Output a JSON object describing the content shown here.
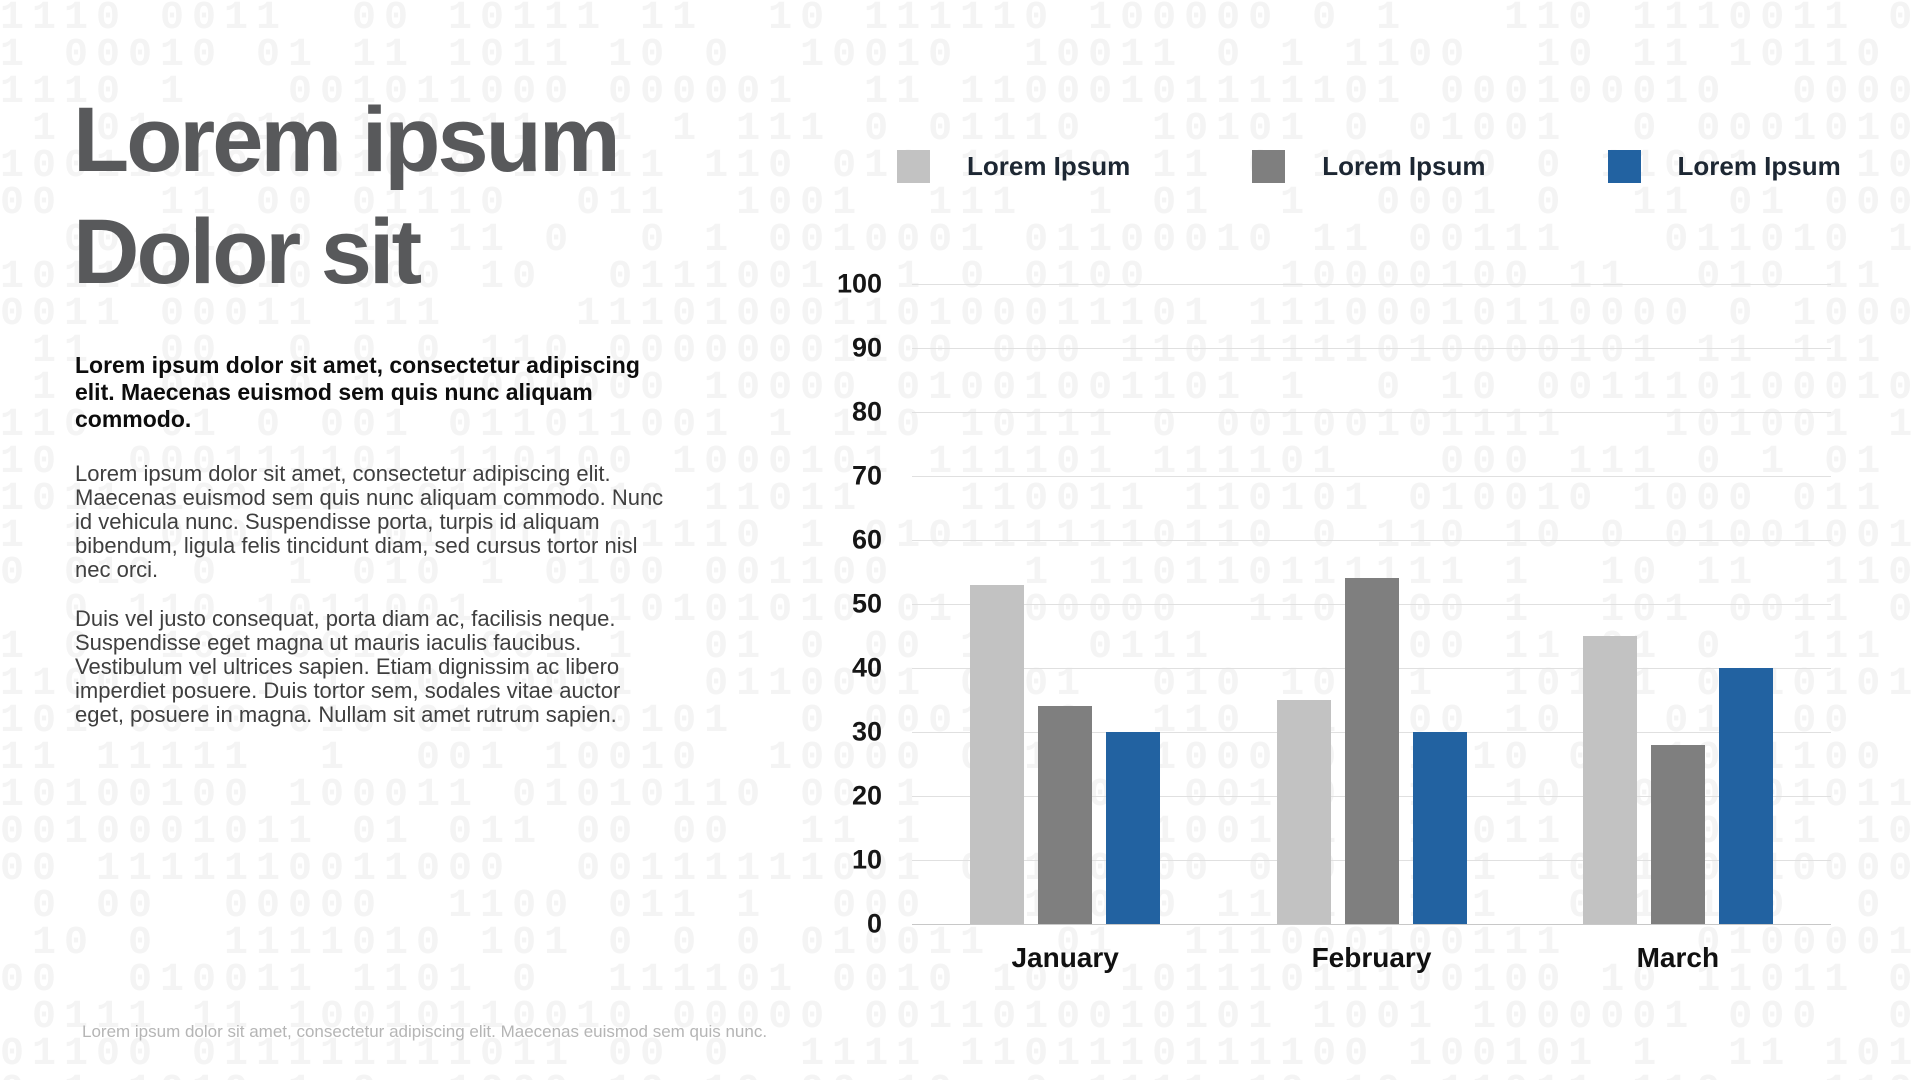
{
  "slide": {
    "title_line1": "Lorem ipsum",
    "title_line2": "Dolor sit",
    "lead": "Lorem ipsum dolor sit amet, consectetur adipiscing elit. Maecenas euismod sem quis nunc aliquam commodo.",
    "paragraph1": "Lorem ipsum dolor sit amet, consectetur adipiscing elit. Maecenas euismod sem quis nunc aliquam commodo. Nunc id vehicula nunc. Suspendisse porta, turpis id aliquam bibendum, ligula felis tincidunt diam, sed cursus tortor nisl nec orci.",
    "paragraph2": "Duis vel justo consequat, porta diam ac, facilisis neque. Suspendisse eget magna ut mauris iaculis faucibus. Vestibulum vel ultrices sapien. Etiam dignissim ac libero imperdiet posuere. Duis tortor sem, sodales vitae auctor eget, posuere in magna. Nullam sit amet rutrum sapien.",
    "footer": "Lorem ipsum dolor sit amet, consectetur adipiscing elit. Maecenas euismod sem quis nunc."
  },
  "background": {
    "chars": "01",
    "color": "#f4f4f4"
  },
  "colors": {
    "title": "#58595B",
    "series_light_gray": "#C2C2C2",
    "series_dark_gray": "#7F7F7F",
    "series_blue": "#2262A1",
    "gridline": "#e0e0e0",
    "axis_text": "#161616"
  },
  "chart_data": {
    "type": "bar",
    "categories": [
      "January",
      "February",
      "March"
    ],
    "series": [
      {
        "name": "Lorem Ipsum",
        "color": "#C2C2C2",
        "values": [
          53,
          35,
          45
        ]
      },
      {
        "name": "Lorem Ipsum",
        "color": "#7F7F7F",
        "values": [
          34,
          54,
          28
        ]
      },
      {
        "name": "Lorem Ipsum",
        "color": "#2262A1",
        "values": [
          30,
          30,
          40
        ]
      }
    ],
    "title": "",
    "xlabel": "",
    "ylabel": "",
    "ylim": [
      0,
      100
    ],
    "yticks": [
      0,
      10,
      20,
      30,
      40,
      50,
      60,
      70,
      80,
      90,
      100
    ],
    "grid": true,
    "legend_position": "top"
  }
}
